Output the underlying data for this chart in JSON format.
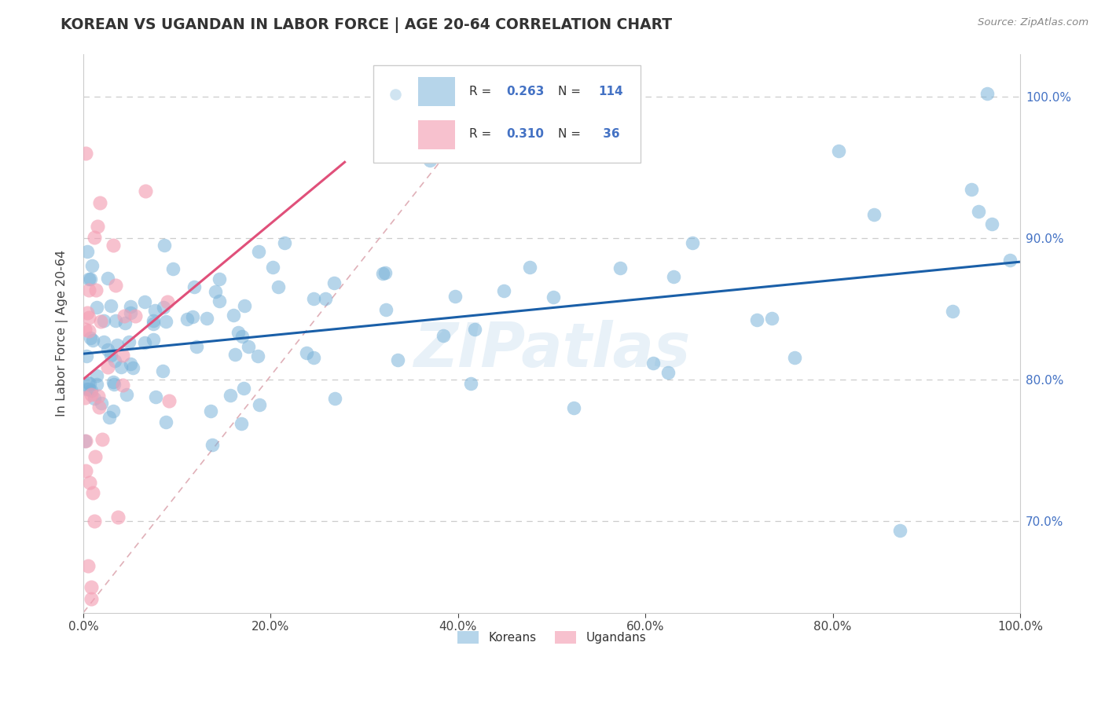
{
  "title": "KOREAN VS UGANDAN IN LABOR FORCE | AGE 20-64 CORRELATION CHART",
  "source_text": "Source: ZipAtlas.com",
  "ylabel": "In Labor Force | Age 20-64",
  "xlim": [
    0.0,
    1.0
  ],
  "ylim": [
    0.635,
    1.03
  ],
  "xtick_labels": [
    "0.0%",
    "20.0%",
    "40.0%",
    "60.0%",
    "80.0%",
    "100.0%"
  ],
  "xtick_vals": [
    0.0,
    0.2,
    0.4,
    0.6,
    0.8,
    1.0
  ],
  "ytick_labels": [
    "70.0%",
    "80.0%",
    "90.0%",
    "100.0%"
  ],
  "ytick_vals": [
    0.7,
    0.8,
    0.9,
    1.0
  ],
  "korean_color": "#7ab3d9",
  "ugandan_color": "#f4a0b5",
  "korean_R": "0.263",
  "korean_N": "114",
  "ugandan_R": "0.310",
  "ugandan_N": "36",
  "watermark": "ZIPatlas",
  "legend_labels": [
    "Koreans",
    "Ugandans"
  ],
  "korean_line_color": "#1a5fa8",
  "ugandan_line_color": "#e0507a",
  "diag_line_color": "#e0b0b8",
  "grid_color": "#cccccc",
  "right_tick_color": "#4472c4"
}
